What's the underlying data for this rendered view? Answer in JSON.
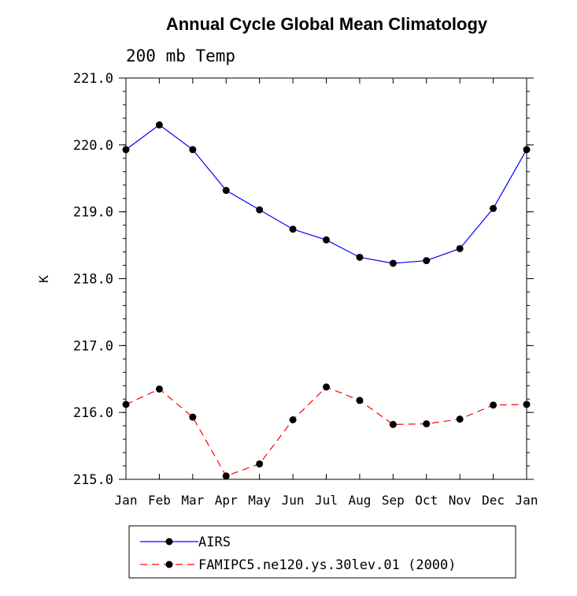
{
  "chart_data": {
    "type": "line",
    "title": "Annual Cycle Global Mean Climatology",
    "subtitle": "200 mb Temp",
    "xlabel": "",
    "ylabel": "K",
    "categories": [
      "Jan",
      "Feb",
      "Mar",
      "Apr",
      "May",
      "Jun",
      "Jul",
      "Aug",
      "Sep",
      "Oct",
      "Nov",
      "Dec",
      "Jan"
    ],
    "ylim": [
      215.0,
      221.0
    ],
    "yticks": [
      "215.0",
      "216.0",
      "217.0",
      "218.0",
      "219.0",
      "220.0",
      "221.0"
    ],
    "grid": false,
    "legend": "bottom",
    "series": [
      {
        "name": "AIRS",
        "color": "#0000ff",
        "dash": "solid",
        "values": [
          219.93,
          220.3,
          219.93,
          219.32,
          219.03,
          218.74,
          218.58,
          218.32,
          218.23,
          218.27,
          218.45,
          219.05,
          219.93
        ]
      },
      {
        "name": "FAMIPC5.ne120.ys.30lev.01 (2000)",
        "color": "#ff0000",
        "dash": "dashed",
        "values": [
          216.12,
          216.35,
          215.93,
          215.05,
          215.23,
          215.89,
          216.38,
          216.18,
          215.82,
          215.83,
          215.9,
          216.11,
          216.12
        ]
      }
    ]
  }
}
